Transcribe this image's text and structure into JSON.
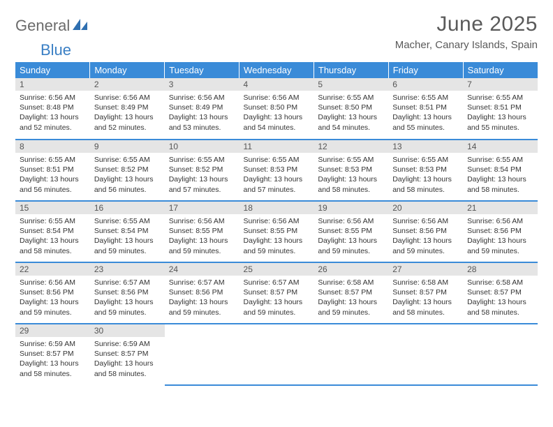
{
  "logo": {
    "word1": "General",
    "word2": "Blue"
  },
  "title": "June 2025",
  "location": "Macher, Canary Islands, Spain",
  "colors": {
    "header_bg": "#3a8bd8",
    "header_text": "#ffffff",
    "daynum_bg": "#e5e5e5",
    "border": "#3a8bd8",
    "logo_gray": "#6b6b6b",
    "logo_blue": "#3a7fc4"
  },
  "weekdays": [
    "Sunday",
    "Monday",
    "Tuesday",
    "Wednesday",
    "Thursday",
    "Friday",
    "Saturday"
  ],
  "days": [
    {
      "n": "1",
      "sunrise": "6:56 AM",
      "sunset": "8:48 PM",
      "daylight": "13 hours and 52 minutes."
    },
    {
      "n": "2",
      "sunrise": "6:56 AM",
      "sunset": "8:49 PM",
      "daylight": "13 hours and 52 minutes."
    },
    {
      "n": "3",
      "sunrise": "6:56 AM",
      "sunset": "8:49 PM",
      "daylight": "13 hours and 53 minutes."
    },
    {
      "n": "4",
      "sunrise": "6:56 AM",
      "sunset": "8:50 PM",
      "daylight": "13 hours and 54 minutes."
    },
    {
      "n": "5",
      "sunrise": "6:55 AM",
      "sunset": "8:50 PM",
      "daylight": "13 hours and 54 minutes."
    },
    {
      "n": "6",
      "sunrise": "6:55 AM",
      "sunset": "8:51 PM",
      "daylight": "13 hours and 55 minutes."
    },
    {
      "n": "7",
      "sunrise": "6:55 AM",
      "sunset": "8:51 PM",
      "daylight": "13 hours and 55 minutes."
    },
    {
      "n": "8",
      "sunrise": "6:55 AM",
      "sunset": "8:51 PM",
      "daylight": "13 hours and 56 minutes."
    },
    {
      "n": "9",
      "sunrise": "6:55 AM",
      "sunset": "8:52 PM",
      "daylight": "13 hours and 56 minutes."
    },
    {
      "n": "10",
      "sunrise": "6:55 AM",
      "sunset": "8:52 PM",
      "daylight": "13 hours and 57 minutes."
    },
    {
      "n": "11",
      "sunrise": "6:55 AM",
      "sunset": "8:53 PM",
      "daylight": "13 hours and 57 minutes."
    },
    {
      "n": "12",
      "sunrise": "6:55 AM",
      "sunset": "8:53 PM",
      "daylight": "13 hours and 58 minutes."
    },
    {
      "n": "13",
      "sunrise": "6:55 AM",
      "sunset": "8:53 PM",
      "daylight": "13 hours and 58 minutes."
    },
    {
      "n": "14",
      "sunrise": "6:55 AM",
      "sunset": "8:54 PM",
      "daylight": "13 hours and 58 minutes."
    },
    {
      "n": "15",
      "sunrise": "6:55 AM",
      "sunset": "8:54 PM",
      "daylight": "13 hours and 58 minutes."
    },
    {
      "n": "16",
      "sunrise": "6:55 AM",
      "sunset": "8:54 PM",
      "daylight": "13 hours and 59 minutes."
    },
    {
      "n": "17",
      "sunrise": "6:56 AM",
      "sunset": "8:55 PM",
      "daylight": "13 hours and 59 minutes."
    },
    {
      "n": "18",
      "sunrise": "6:56 AM",
      "sunset": "8:55 PM",
      "daylight": "13 hours and 59 minutes."
    },
    {
      "n": "19",
      "sunrise": "6:56 AM",
      "sunset": "8:55 PM",
      "daylight": "13 hours and 59 minutes."
    },
    {
      "n": "20",
      "sunrise": "6:56 AM",
      "sunset": "8:56 PM",
      "daylight": "13 hours and 59 minutes."
    },
    {
      "n": "21",
      "sunrise": "6:56 AM",
      "sunset": "8:56 PM",
      "daylight": "13 hours and 59 minutes."
    },
    {
      "n": "22",
      "sunrise": "6:56 AM",
      "sunset": "8:56 PM",
      "daylight": "13 hours and 59 minutes."
    },
    {
      "n": "23",
      "sunrise": "6:57 AM",
      "sunset": "8:56 PM",
      "daylight": "13 hours and 59 minutes."
    },
    {
      "n": "24",
      "sunrise": "6:57 AM",
      "sunset": "8:56 PM",
      "daylight": "13 hours and 59 minutes."
    },
    {
      "n": "25",
      "sunrise": "6:57 AM",
      "sunset": "8:57 PM",
      "daylight": "13 hours and 59 minutes."
    },
    {
      "n": "26",
      "sunrise": "6:58 AM",
      "sunset": "8:57 PM",
      "daylight": "13 hours and 59 minutes."
    },
    {
      "n": "27",
      "sunrise": "6:58 AM",
      "sunset": "8:57 PM",
      "daylight": "13 hours and 58 minutes."
    },
    {
      "n": "28",
      "sunrise": "6:58 AM",
      "sunset": "8:57 PM",
      "daylight": "13 hours and 58 minutes."
    },
    {
      "n": "29",
      "sunrise": "6:59 AM",
      "sunset": "8:57 PM",
      "daylight": "13 hours and 58 minutes."
    },
    {
      "n": "30",
      "sunrise": "6:59 AM",
      "sunset": "8:57 PM",
      "daylight": "13 hours and 58 minutes."
    }
  ],
  "labels": {
    "sunrise_prefix": "Sunrise: ",
    "sunset_prefix": "Sunset: ",
    "daylight_prefix": "Daylight: "
  }
}
